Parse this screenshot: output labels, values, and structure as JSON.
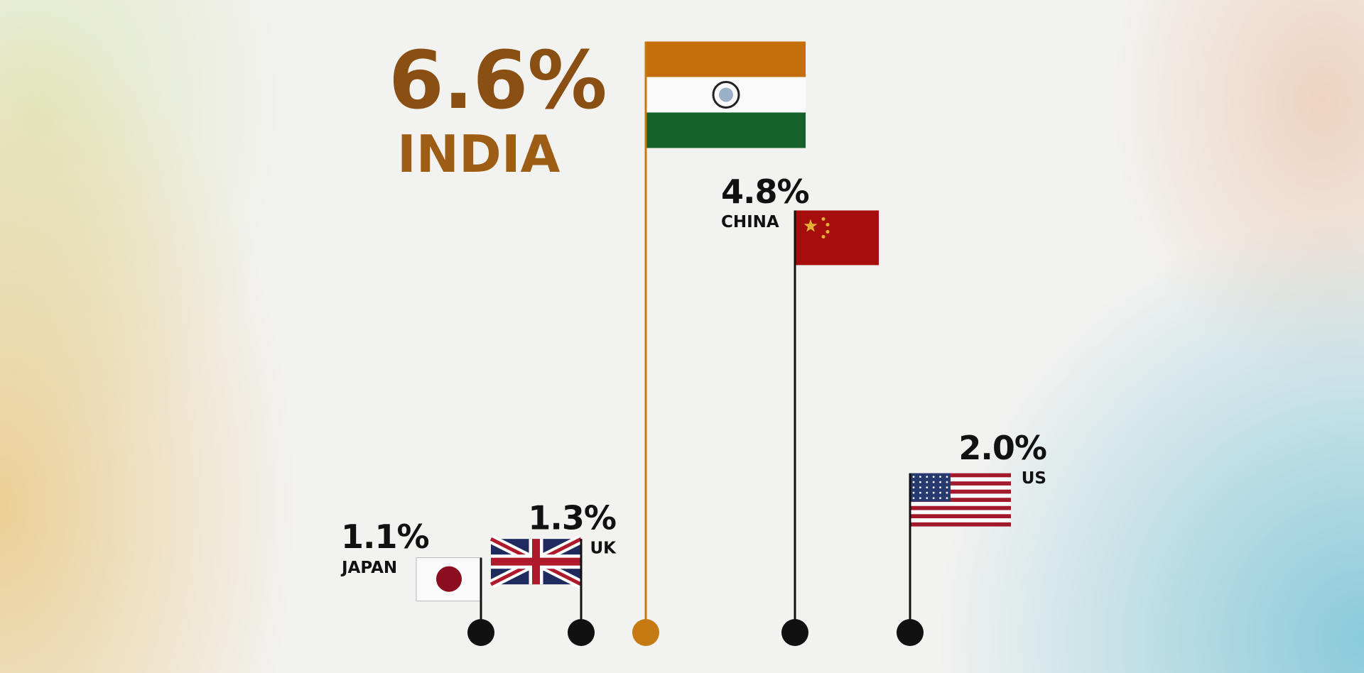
{
  "chart_data": {
    "type": "flagpole",
    "categories": [
      "JAPAN",
      "UK",
      "INDIA",
      "CHINA",
      "US"
    ],
    "values": [
      1.1,
      1.3,
      6.6,
      4.8,
      2.0
    ],
    "value_labels": [
      "1.1%",
      "1.3%",
      "6.6%",
      "4.8%",
      "2.0%"
    ],
    "colors": [
      "#111111",
      "#111111",
      "#c47a10",
      "#111111",
      "#111111"
    ]
  }
}
